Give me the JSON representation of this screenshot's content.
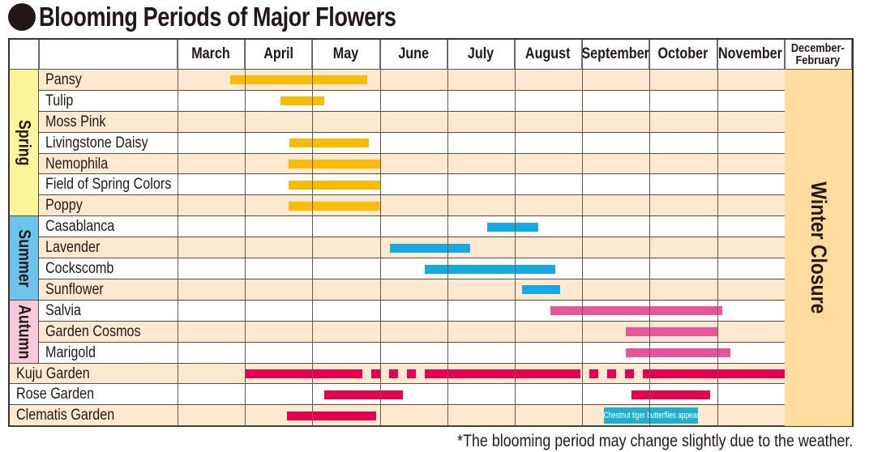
{
  "title": "Blooming Periods of Major Flowers",
  "footnote": "*The blooming period may change slightly due to the weather.",
  "chart_data": {
    "type": "gantt",
    "title": "Blooming Periods of Major Flowers",
    "months": [
      "March",
      "April",
      "May",
      "June",
      "July",
      "August",
      "September",
      "October",
      "November",
      "December-February"
    ],
    "x_unit": "month number (3 = start of March)",
    "winter_closure_label": "Winter Closure",
    "colors": {
      "spring": "#f8bd00",
      "summer": "#16a8e0",
      "autumn": "#e8559a",
      "garden": "#e5004f",
      "row_shade": "#fde9cf",
      "winter": "#fddc9e",
      "spring_label": "#fdf59a",
      "summer_label": "#6cc3ec",
      "autumn_label": "#f6c9dc",
      "annotation": "#1ab0d4"
    },
    "groups": [
      {
        "label": "Spring",
        "color_key": "spring",
        "items": [
          {
            "name": "Pansy",
            "periods": [
              {
                "start": 3.78,
                "end": 5.81
              }
            ]
          },
          {
            "name": "Tulip",
            "periods": [
              {
                "start": 4.53,
                "end": 5.18
              }
            ]
          },
          {
            "name": "Moss Pink",
            "periods": []
          },
          {
            "name": "Livingstone Daisy",
            "periods": [
              {
                "start": 4.66,
                "end": 5.84
              }
            ]
          },
          {
            "name": "Nemophila",
            "periods": [
              {
                "start": 4.65,
                "end": 6.0
              }
            ]
          },
          {
            "name": "Field of Spring Colors",
            "periods": [
              {
                "start": 4.65,
                "end": 6.0
              }
            ]
          },
          {
            "name": "Poppy",
            "periods": [
              {
                "start": 4.65,
                "end": 6.0
              }
            ]
          }
        ]
      },
      {
        "label": "Summer",
        "color_key": "summer",
        "items": [
          {
            "name": "Casablanca",
            "periods": [
              {
                "start": 7.59,
                "end": 8.35
              }
            ]
          },
          {
            "name": "Lavender",
            "periods": [
              {
                "start": 6.15,
                "end": 7.34
              }
            ]
          },
          {
            "name": "Cockscomb",
            "periods": [
              {
                "start": 6.67,
                "end": 8.6
              }
            ]
          },
          {
            "name": "Sunflower",
            "periods": [
              {
                "start": 8.11,
                "end": 8.67
              }
            ]
          }
        ]
      },
      {
        "label": "Autumn",
        "color_key": "autumn",
        "items": [
          {
            "name": "Salvia",
            "periods": [
              {
                "start": 8.53,
                "end": 11.08
              }
            ]
          },
          {
            "name": "Garden Cosmos",
            "periods": [
              {
                "start": 9.65,
                "end": 11.0
              }
            ]
          },
          {
            "name": "Marigold",
            "periods": [
              {
                "start": 9.65,
                "end": 11.2
              }
            ]
          }
        ]
      }
    ],
    "gardens": [
      {
        "name": "Kuju Garden",
        "periods": [
          {
            "start": 4.0,
            "end": 5.61,
            "style": "solid"
          },
          {
            "start": 5.61,
            "end": 6.68,
            "style": "dashed"
          },
          {
            "start": 6.68,
            "end": 8.84,
            "style": "solid"
          },
          {
            "start": 8.84,
            "end": 10.0,
            "style": "dashed"
          },
          {
            "start": 10.0,
            "end": 12.0,
            "style": "solid"
          }
        ]
      },
      {
        "name": "Rose Garden",
        "periods": [
          {
            "start": 5.18,
            "end": 6.34,
            "style": "solid"
          },
          {
            "start": 9.73,
            "end": 10.9,
            "style": "solid"
          }
        ]
      },
      {
        "name": "Clematis Garden",
        "periods": [
          {
            "start": 4.62,
            "end": 5.95,
            "style": "solid"
          }
        ],
        "annotation": {
          "text": "Chestnut tiger butterflies appear",
          "start": 9.32,
          "end": 10.72
        }
      }
    ]
  }
}
